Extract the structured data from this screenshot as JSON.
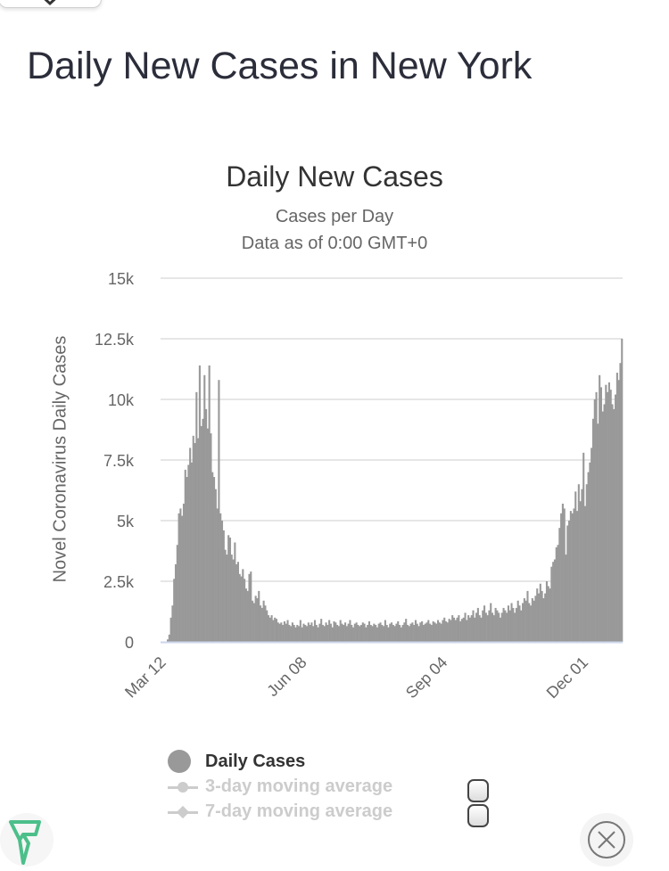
{
  "page_title": "Daily New Cases in New York",
  "chart_data": {
    "type": "bar",
    "title": "Daily New Cases",
    "subtitle": "Cases per Day",
    "subtitle2": "Data as of 0:00 GMT+0",
    "ylabel": "Novel Coronavirus Daily Cases",
    "xlabel": "",
    "ylim": [
      0,
      15000
    ],
    "yticks": [
      {
        "v": 0,
        "label": "0"
      },
      {
        "v": 2500,
        "label": "2.5k"
      },
      {
        "v": 5000,
        "label": "5k"
      },
      {
        "v": 7500,
        "label": "7.5k"
      },
      {
        "v": 10000,
        "label": "10k"
      },
      {
        "v": 12500,
        "label": "12.5k"
      },
      {
        "v": 15000,
        "label": "15k"
      }
    ],
    "xticks": [
      {
        "day": 0,
        "label": "Mar 12"
      },
      {
        "day": 88,
        "label": "Jun 08"
      },
      {
        "day": 176,
        "label": "Sep 04"
      },
      {
        "day": 264,
        "label": "Dec 01"
      }
    ],
    "start_date": "Mar 12",
    "grid": true,
    "color": "#999999",
    "values": [
      100,
      300,
      1000,
      1500,
      2600,
      3200,
      4000,
      5300,
      5500,
      5200,
      5700,
      7100,
      6800,
      7300,
      8000,
      7400,
      8500,
      8200,
      10300,
      8400,
      11400,
      8900,
      9200,
      11000,
      9600,
      8800,
      11400,
      8600,
      7000,
      6800,
      6300,
      5500,
      10800,
      5300,
      5000,
      4600,
      3800,
      3600,
      4400,
      4300,
      3600,
      3400,
      4100,
      3200,
      3300,
      2800,
      2700,
      3000,
      2600,
      2200,
      2100,
      2800,
      2900,
      1700,
      1600,
      1900,
      1800,
      2100,
      1500,
      1400,
      1700,
      1500,
      1300,
      1100,
      1000,
      1100,
      900,
      1000,
      950,
      800,
      750,
      800,
      700,
      850,
      750,
      900,
      700,
      650,
      800,
      700,
      600,
      700,
      650,
      900,
      600,
      750,
      700,
      650,
      800,
      700,
      800,
      650,
      900,
      700,
      600,
      750,
      950,
      700,
      650,
      800,
      700,
      900,
      750,
      600,
      850,
      800,
      700,
      650,
      900,
      750,
      700,
      800,
      650,
      750,
      900,
      700,
      600,
      750,
      800,
      700,
      650,
      700,
      800,
      750,
      600,
      700,
      850,
      700,
      650,
      750,
      700,
      600,
      750,
      800,
      700,
      650,
      900,
      700,
      600,
      750,
      800,
      700,
      650,
      750,
      850,
      700,
      600,
      700,
      800,
      950,
      700,
      650,
      750,
      800,
      700,
      900,
      750,
      650,
      800,
      850,
      700,
      750,
      800,
      900,
      750,
      700,
      850,
      800,
      750,
      900,
      800,
      750,
      900,
      1000,
      850,
      800,
      950,
      900,
      1100,
      1000,
      900,
      1000,
      1100,
      850,
      950,
      1000,
      1200,
      900,
      1100,
      1000,
      1100,
      1300,
      1000,
      1200,
      1400,
      1100,
      1000,
      1300,
      1500,
      1200,
      1100,
      1300,
      1600,
      1200,
      1100,
      1400,
      1300,
      1200,
      1000,
      1200,
      1400,
      1300,
      1200,
      1500,
      1300,
      1600,
      1400,
      1200,
      1400,
      1700,
      1500,
      1300,
      1600,
      1800,
      1700,
      2100,
      1600,
      1500,
      1800,
      1700,
      1900,
      2200,
      2000,
      2400,
      2100,
      1800,
      2000,
      2500,
      2300,
      2200,
      3100,
      3300,
      3400,
      3900,
      4000,
      4700,
      5300,
      5700,
      5500,
      3600,
      4800,
      5000,
      5400,
      5300,
      5500,
      6200,
      5400,
      6500,
      5800,
      6300,
      7800,
      5600,
      6500,
      7000,
      7400,
      8000,
      9200,
      10000,
      10300,
      9000,
      11000,
      10500,
      9500,
      9800,
      10600,
      10300,
      10700,
      10400,
      9800,
      9600,
      10200,
      11100,
      10800,
      11500,
      12500
    ],
    "legend": [
      {
        "label": "Daily Cases",
        "active": true,
        "color": "#999999"
      },
      {
        "label": "3-day moving average",
        "active": false,
        "color": "#cccccc"
      },
      {
        "label": "7-day moving average",
        "active": false,
        "color": "#cccccc"
      }
    ]
  },
  "logo_color": "#4cbf8a"
}
